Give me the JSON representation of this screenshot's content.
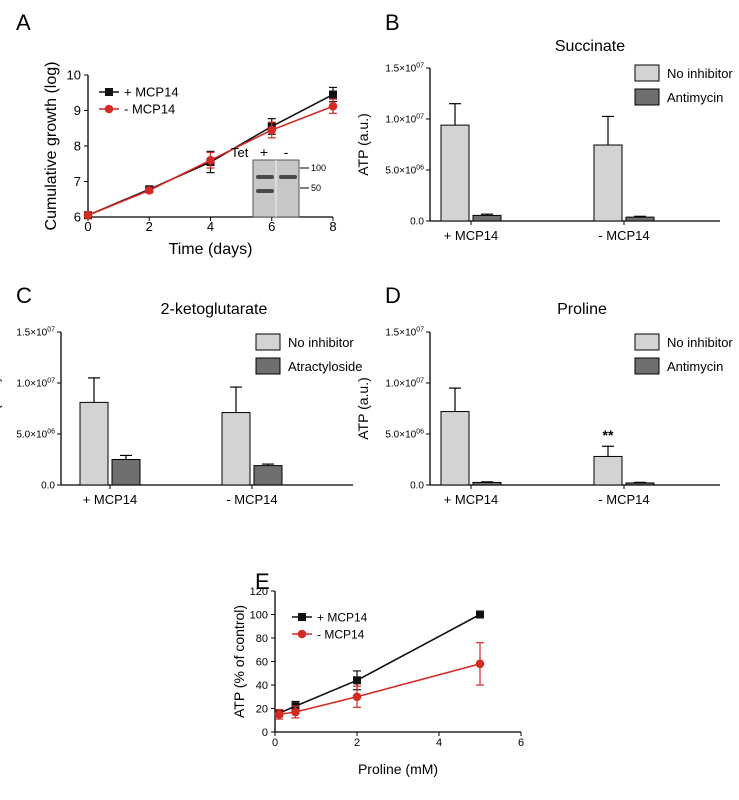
{
  "colors": {
    "plus": "#111111",
    "minus": "#d42a24",
    "no_inhibitor": "#d3d3d3",
    "inhibitor": "#6f6f6f",
    "axis": "#000000",
    "blot_bg": "#c7c7c7",
    "blot_band": "#4a4a4a"
  },
  "blot": {
    "tet_label": "Tet",
    "plus_label": "+",
    "minus_label": "-",
    "marker_top": "100",
    "marker_bottom": "50"
  },
  "chart_data": [
    {
      "panel": "A",
      "type": "line",
      "title": "",
      "xlabel": "Time (days)",
      "ylabel": "Cumulative growth (log)",
      "xlim": [
        0,
        8
      ],
      "ylim": [
        6,
        10
      ],
      "xticks": [
        "0",
        "2",
        "4",
        "6",
        "8"
      ],
      "yticks": [
        "6",
        "7",
        "8",
        "9",
        "10"
      ],
      "legend_position": "top-left",
      "x": [
        0,
        2,
        4,
        6,
        8
      ],
      "series": [
        {
          "name": "+ MCP14",
          "values": [
            6.05,
            6.78,
            7.55,
            8.55,
            9.45
          ],
          "errors": [
            0.03,
            0.06,
            0.3,
            0.22,
            0.2
          ],
          "color_key": "plus",
          "marker": "square"
        },
        {
          "name": "- MCP14",
          "values": [
            6.05,
            6.75,
            7.6,
            8.45,
            9.12
          ],
          "errors": [
            0.03,
            0.05,
            0.22,
            0.22,
            0.2
          ],
          "color_key": "minus",
          "marker": "circle"
        }
      ]
    },
    {
      "panel": "B",
      "type": "bar",
      "title": "Succinate",
      "xlabel": "",
      "ylabel": "ATP (a.u.)",
      "ylim": [
        0,
        15000000
      ],
      "yticks": [
        {
          "mantissa": "0.0",
          "exp": ""
        },
        {
          "mantissa": "5.0×10",
          "exp": "06"
        },
        {
          "mantissa": "1.0×10",
          "exp": "07"
        },
        {
          "mantissa": "1.5×10",
          "exp": "07"
        }
      ],
      "categories": [
        "+ MCP14",
        "- MCP14"
      ],
      "legend_position": "top-right",
      "series": [
        {
          "name": "No inhibitor",
          "values": [
            9400000,
            7450000
          ],
          "errors": [
            2100000,
            2800000
          ],
          "color_key": "no_inhibitor"
        },
        {
          "name": "Antimycin",
          "values": [
            550000,
            380000
          ],
          "errors": [
            120000,
            80000
          ],
          "color_key": "inhibitor"
        }
      ],
      "annotations": []
    },
    {
      "panel": "C",
      "type": "bar",
      "title": "2-ketoglutarate",
      "xlabel": "",
      "ylabel": "ATP (a.u.)",
      "ylim": [
        0,
        15000000
      ],
      "yticks": [
        {
          "mantissa": "0.0",
          "exp": ""
        },
        {
          "mantissa": "5.0×10",
          "exp": "06"
        },
        {
          "mantissa": "1.0×10",
          "exp": "07"
        },
        {
          "mantissa": "1.5×10",
          "exp": "07"
        }
      ],
      "categories": [
        "+ MCP14",
        "- MCP14"
      ],
      "legend_position": "top-right",
      "series": [
        {
          "name": "No inhibitor",
          "values": [
            8100000,
            7100000
          ],
          "errors": [
            2400000,
            2500000
          ],
          "color_key": "no_inhibitor"
        },
        {
          "name": "Atractyloside",
          "values": [
            2500000,
            1900000
          ],
          "errors": [
            400000,
            150000
          ],
          "color_key": "inhibitor"
        }
      ],
      "annotations": []
    },
    {
      "panel": "D",
      "type": "bar",
      "title": "Proline",
      "xlabel": "",
      "ylabel": "ATP (a.u.)",
      "ylim": [
        0,
        15000000
      ],
      "yticks": [
        {
          "mantissa": "0.0",
          "exp": ""
        },
        {
          "mantissa": "5.0×10",
          "exp": "06"
        },
        {
          "mantissa": "1.0×10",
          "exp": "07"
        },
        {
          "mantissa": "1.5×10",
          "exp": "07"
        }
      ],
      "categories": [
        "+ MCP14",
        "- MCP14"
      ],
      "legend_position": "top-right",
      "series": [
        {
          "name": "No inhibitor",
          "values": [
            7200000,
            2800000
          ],
          "errors": [
            2300000,
            1000000
          ],
          "color_key": "no_inhibitor"
        },
        {
          "name": "Antimycin",
          "values": [
            250000,
            200000
          ],
          "errors": [
            60000,
            60000
          ],
          "color_key": "inhibitor"
        }
      ],
      "annotations": [
        {
          "text": "**",
          "category": 1,
          "series": 0
        }
      ]
    },
    {
      "panel": "E",
      "type": "line",
      "title": "",
      "xlabel": "Proline (mM)",
      "ylabel": "ATP (% of control)",
      "xlim": [
        0,
        6
      ],
      "ylim": [
        0,
        120
      ],
      "xticks": [
        "0",
        "2",
        "4",
        "6"
      ],
      "yticks": [
        "0",
        "20",
        "40",
        "60",
        "80",
        "100",
        "120"
      ],
      "legend_position": "top-left",
      "x": [
        0.1,
        0.5,
        2,
        5
      ],
      "series": [
        {
          "name": "+ MCP14",
          "values": [
            16,
            22,
            44,
            100
          ],
          "errors": [
            3,
            4,
            8,
            0
          ],
          "color_key": "plus",
          "marker": "square"
        },
        {
          "name": "- MCP14",
          "values": [
            15,
            17,
            30,
            58
          ],
          "errors": [
            4,
            5,
            9,
            18
          ],
          "color_key": "minus",
          "marker": "circle"
        }
      ]
    }
  ],
  "panel_labels": [
    "A",
    "B",
    "C",
    "D",
    "E"
  ]
}
